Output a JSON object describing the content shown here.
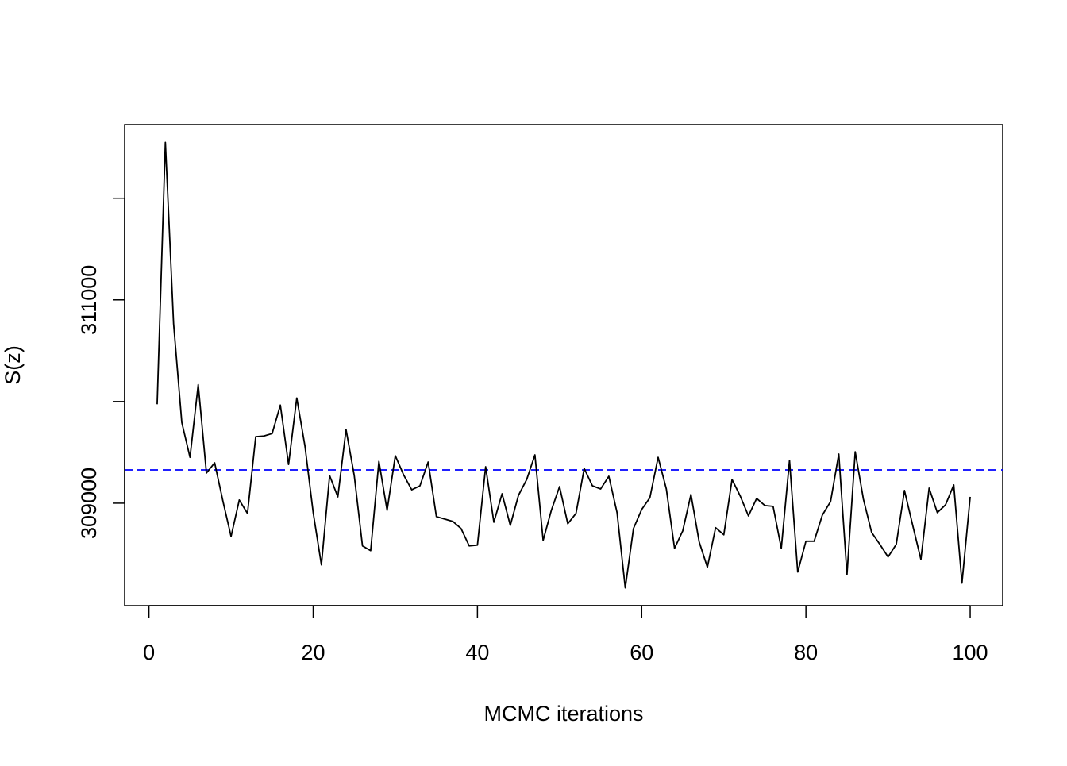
{
  "chart_data": {
    "type": "line",
    "xlabel": "MCMC iterations",
    "ylabel": "S(z)",
    "x": [
      1,
      2,
      3,
      4,
      5,
      6,
      7,
      8,
      9,
      10,
      11,
      12,
      13,
      14,
      15,
      16,
      17,
      18,
      19,
      20,
      21,
      22,
      23,
      24,
      25,
      26,
      27,
      28,
      29,
      30,
      31,
      32,
      33,
      34,
      35,
      36,
      37,
      38,
      39,
      40,
      41,
      42,
      43,
      44,
      45,
      46,
      47,
      48,
      49,
      50,
      51,
      52,
      53,
      54,
      55,
      56,
      57,
      58,
      59,
      60,
      61,
      62,
      63,
      64,
      65,
      66,
      67,
      68,
      69,
      70,
      71,
      72,
      73,
      74,
      75,
      76,
      77,
      78,
      79,
      80,
      81,
      82,
      83,
      84,
      85,
      86,
      87,
      88,
      89,
      90,
      91,
      92,
      93,
      94,
      95,
      96,
      97,
      98,
      99,
      100
    ],
    "series": [
      {
        "color": "#000000",
        "values": [
          309973,
          312549,
          310766,
          309794,
          309451,
          310167,
          309296,
          309397,
          309023,
          308673,
          309031,
          308899,
          309654,
          309661,
          309685,
          309965,
          309381,
          310035,
          309560,
          308907,
          308393,
          309272,
          309062,
          309724,
          309272,
          308580,
          308533,
          309412,
          308930,
          309467,
          309280,
          309132,
          309171,
          309405,
          308868,
          308844,
          308821,
          308751,
          308580,
          308588,
          309358,
          308813,
          309093,
          308782,
          309078,
          309233,
          309475,
          308634,
          308930,
          309163,
          308798,
          308899,
          309342,
          309171,
          309140,
          309265,
          308907,
          308167,
          308751,
          308938,
          309054,
          309451,
          309140,
          308556,
          308728,
          309086,
          308619,
          308370,
          308759,
          308689,
          309233,
          309070,
          308875,
          309047,
          308977,
          308969,
          308556,
          309420,
          308323,
          308626,
          308626,
          308883,
          309016,
          309483,
          308300,
          309506,
          309039,
          308712,
          308595,
          308471,
          308595,
          309125,
          308782,
          308447,
          309148,
          308907,
          308984,
          309179,
          308214,
          309062
        ]
      }
    ],
    "hline": {
      "value": 309327,
      "color": "#0000ff",
      "dash": true
    },
    "xlim": [
      -2.96,
      103.96
    ],
    "ylim": [
      307992,
      312724
    ],
    "xticks": [
      0,
      20,
      40,
      60,
      80,
      100
    ],
    "yticks": [
      309000,
      311000
    ],
    "yticks_unlabeled": [
      310000,
      312000
    ]
  }
}
